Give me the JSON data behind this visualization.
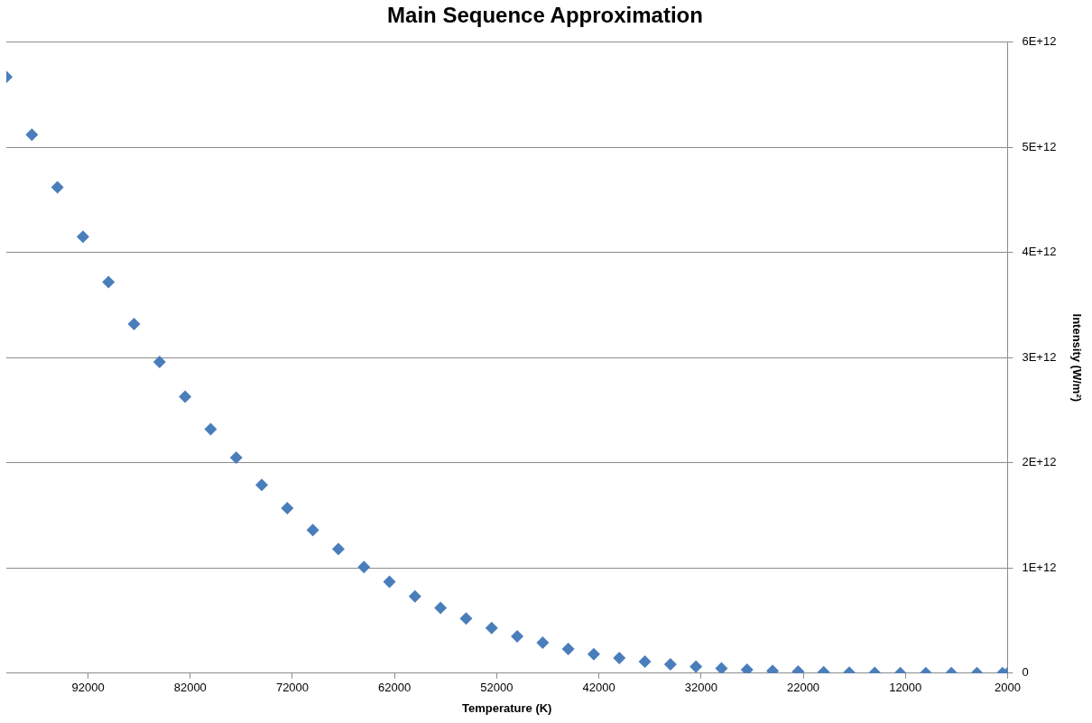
{
  "chart_data": {
    "type": "scatter",
    "title": "Main Sequence Approximation",
    "xlabel": "Temperature (K)",
    "ylabel": "Intensity (W/m²)",
    "xlim": [
      100000,
      2000
    ],
    "xticks": [
      92000,
      82000,
      72000,
      62000,
      52000,
      42000,
      32000,
      22000,
      12000,
      2000
    ],
    "ylim": [
      0,
      6000000000000.0
    ],
    "yticks": [
      0,
      {
        "value": 1000000000000.0,
        "label": "1E+12"
      },
      {
        "value": 2000000000000.0,
        "label": "2E+12"
      },
      {
        "value": 3000000000000.0,
        "label": "3E+12"
      },
      {
        "value": 4000000000000.0,
        "label": "4E+12"
      },
      {
        "value": 5000000000000.0,
        "label": "5E+12"
      },
      {
        "value": 6000000000000.0,
        "label": "6E+12"
      }
    ],
    "grid": "y",
    "legend": false,
    "marker": "diamond",
    "series": [
      {
        "color": "#4a7ebb",
        "x": [
          100000,
          97500,
          95000,
          92500,
          90000,
          87500,
          85000,
          82500,
          80000,
          77500,
          75000,
          72500,
          70000,
          67500,
          65000,
          62500,
          60000,
          57500,
          55000,
          52500,
          50000,
          47500,
          45000,
          42500,
          40000,
          37500,
          35000,
          32500,
          30000,
          27500,
          25000,
          22500,
          20000,
          17500,
          15000,
          12500,
          10000,
          7500,
          5000,
          2500,
          2000
        ],
        "values": [
          5670000000000.0,
          5120000000000.0,
          4620000000000.0,
          4150000000000.0,
          3720000000000.0,
          3320000000000.0,
          2960000000000.0,
          2630000000000.0,
          2320000000000.0,
          2050000000000.0,
          1790000000000.0,
          1570000000000.0,
          1360000000000.0,
          1180000000000.0,
          1010000000000.0,
          870000000000.0,
          730000000000.0,
          620000000000.0,
          520000000000.0,
          430000000000.0,
          350000000000.0,
          290000000000.0,
          230000000000.0,
          180000000000.0,
          145000000000.0,
          110000000000.0,
          85000000000.0,
          63000000000.0,
          46000000000.0,
          32000000000.0,
          22000000000.0,
          15000000000.0,
          9000000000.0,
          5000000000.0,
          3000000000.0,
          1000000000.0,
          600000000.0,
          200000000.0,
          0,
          0,
          0
        ]
      }
    ]
  }
}
